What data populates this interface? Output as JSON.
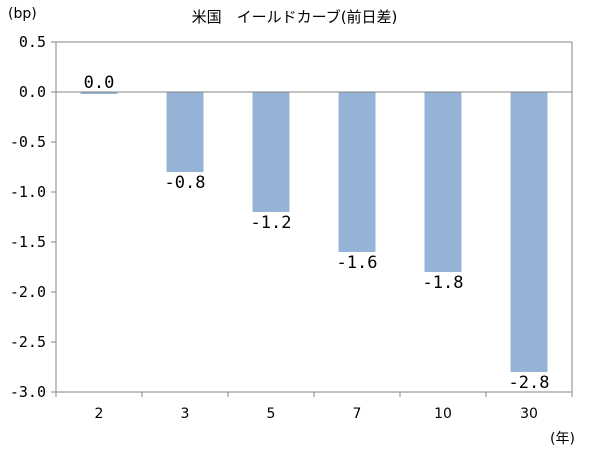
{
  "chart_data": {
    "type": "bar",
    "title": "米国　イールドカーブ(前日差)",
    "ylabel": "(bp)",
    "xlabel": "(年)",
    "categories": [
      "2",
      "3",
      "5",
      "7",
      "10",
      "30"
    ],
    "values": [
      0.0,
      -0.8,
      -1.2,
      -1.6,
      -1.8,
      -2.8
    ],
    "data_labels": [
      "0.0",
      "-0.8",
      "-1.2",
      "-1.6",
      "-1.8",
      "-2.8"
    ],
    "yticks": [
      "0.5",
      "0.0",
      "-0.5",
      "-1.0",
      "-1.5",
      "-2.0",
      "-2.5",
      "-3.0"
    ],
    "ylim": [
      -3.0,
      0.5
    ],
    "bar_color": "#95b3d7",
    "grid": false,
    "legend": "none"
  }
}
